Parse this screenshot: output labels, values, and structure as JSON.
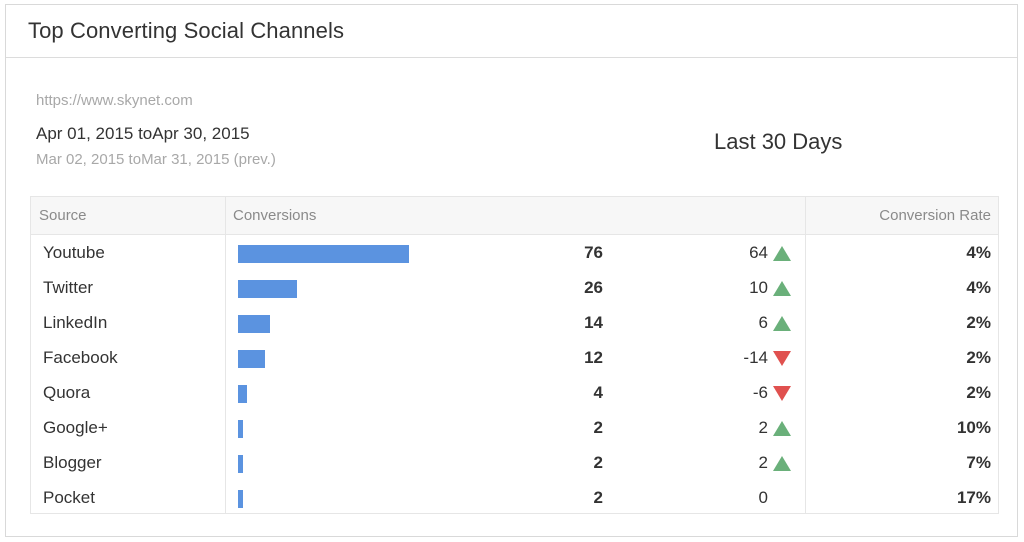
{
  "widget": {
    "title": "Top Converting Social Channels",
    "url": "https://www.skynet.com",
    "date_range": "Apr 01, 2015 toApr 30, 2015",
    "prev_range": "Mar 02, 2015 toMar 31, 2015 (prev.)",
    "period": "Last 30 Days"
  },
  "table": {
    "headers": {
      "source": "Source",
      "conversions": "Conversions",
      "conversion_rate": "Conversion Rate"
    },
    "max_value": 76,
    "rows": [
      {
        "source": "Youtube",
        "value": 76,
        "change": "64",
        "trend": "up",
        "rate": "4%"
      },
      {
        "source": "Twitter",
        "value": 26,
        "change": "10",
        "trend": "up",
        "rate": "4%"
      },
      {
        "source": "LinkedIn",
        "value": 14,
        "change": "6",
        "trend": "up",
        "rate": "2%"
      },
      {
        "source": "Facebook",
        "value": 12,
        "change": "-14",
        "trend": "down",
        "rate": "2%"
      },
      {
        "source": "Quora",
        "value": 4,
        "change": "-6",
        "trend": "down",
        "rate": "2%"
      },
      {
        "source": "Google+",
        "value": 2,
        "change": "2",
        "trend": "up",
        "rate": "10%"
      },
      {
        "source": "Blogger",
        "value": 2,
        "change": "2",
        "trend": "up",
        "rate": "7%"
      },
      {
        "source": "Pocket",
        "value": 2,
        "change": "0",
        "trend": "none",
        "rate": "17%"
      }
    ]
  },
  "colors": {
    "bar": "#5b93e0",
    "up": "#6ab07a",
    "down": "#e0514f"
  },
  "icons": {
    "up": "triangle-up-icon",
    "down": "triangle-down-icon"
  }
}
